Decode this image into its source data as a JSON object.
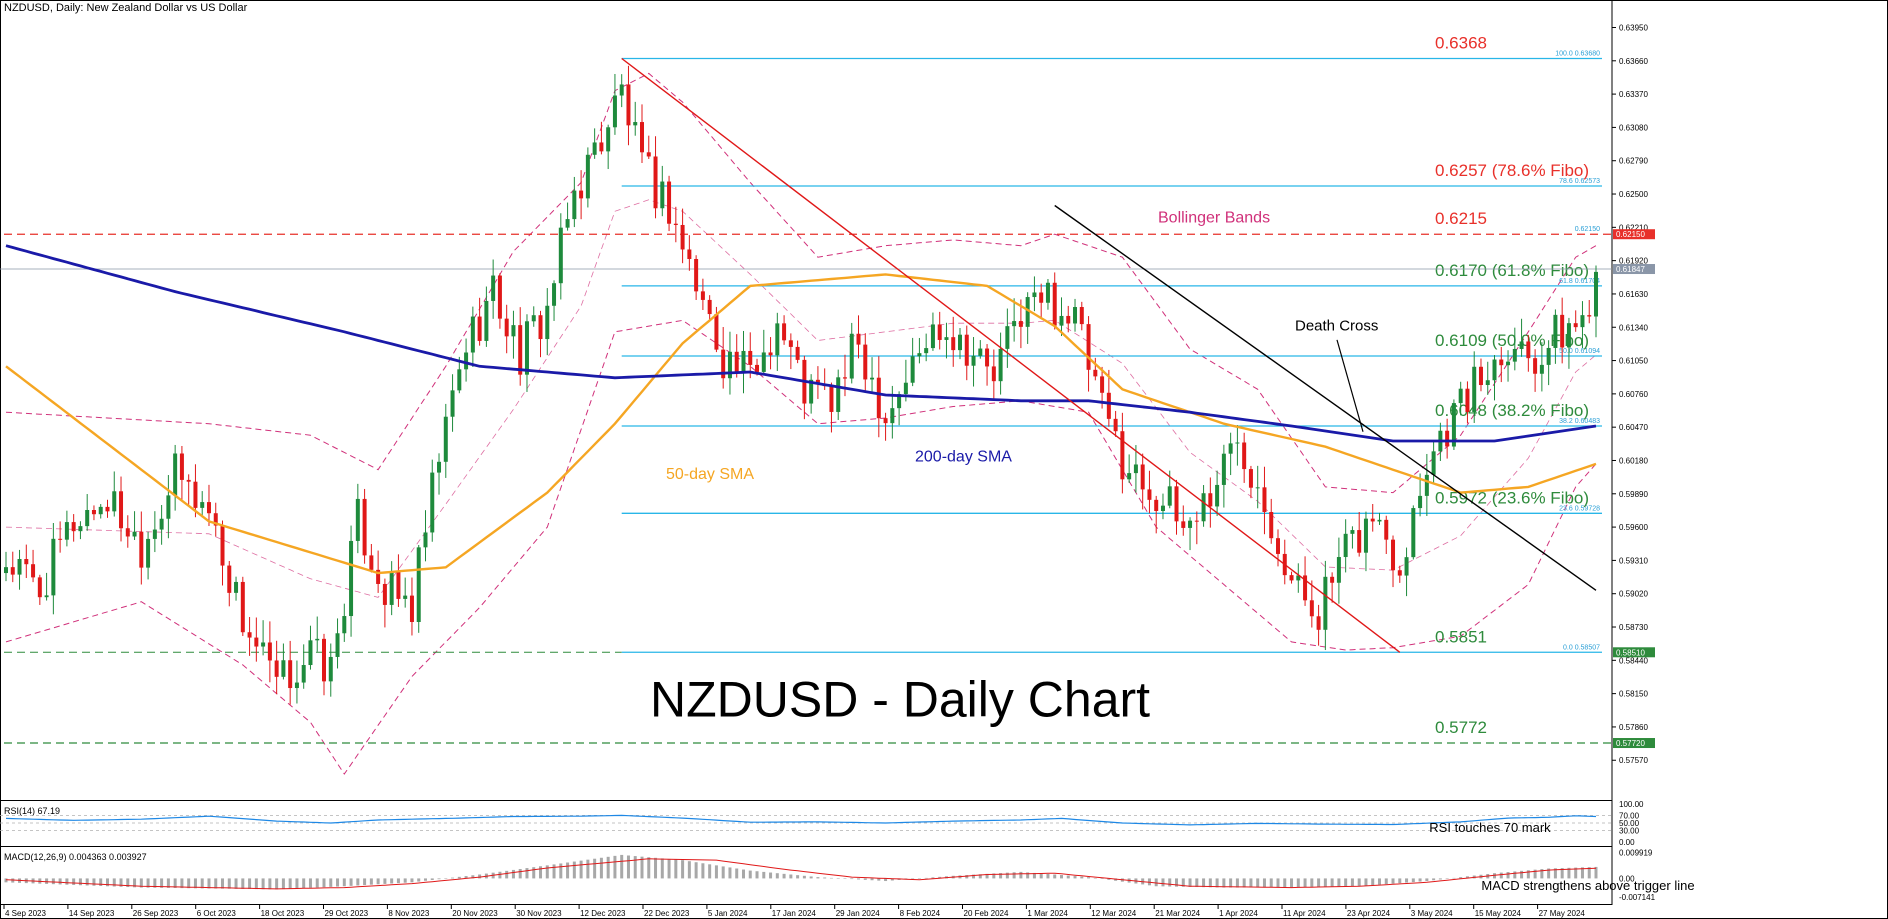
{
  "header": {
    "symbol_line": "NZDUSD, Daily:  New Zealand Dollar vs US Dollar",
    "big_title": "NZDUSD - Daily Chart"
  },
  "colors": {
    "bull": "#1e8a3c",
    "bear": "#e01818",
    "sma50": "#f5a623",
    "sma200": "#1a1aa8",
    "bollinger": "#d0307a",
    "fibo": "#29b6e8",
    "red_level": "#e8302a",
    "green_text": "#2e8b3c",
    "downline": "#e01818",
    "trendline": "#000000",
    "rsi_line": "#1e88e5",
    "macd_hist": "#a8a8a8",
    "macd_signal": "#e01818"
  },
  "chart_data": {
    "type": "candlestick",
    "y_range": [
      0.5725,
      0.6405
    ],
    "price_axis_ticks": [
      "0.63950",
      "0.63660",
      "0.63370",
      "0.63080",
      "0.62790",
      "0.62500",
      "0.62210",
      "0.61920",
      "0.61630",
      "0.61340",
      "0.61050",
      "0.60760",
      "0.60470",
      "0.60180",
      "0.59890",
      "0.59600",
      "0.59310",
      "0.59020",
      "0.58730",
      "0.58440",
      "0.58150",
      "0.57860",
      "0.57570"
    ],
    "date_axis_labels": [
      "4 Sep 2023",
      "14 Sep 2023",
      "26 Sep 2023",
      "6 Oct 2023",
      "18 Oct 2023",
      "29 Oct 2023",
      "8 Nov 2023",
      "20 Nov 2023",
      "30 Nov 2023",
      "12 Dec 2023",
      "22 Dec 2023",
      "5 Jan 2024",
      "17 Jan 2024",
      "29 Jan 2024",
      "8 Feb 2024",
      "20 Feb 2024",
      "1 Mar 2024",
      "12 Mar 2024",
      "21 Mar 2024",
      "1 Apr 2024",
      "11 Apr 2024",
      "23 Apr 2024",
      "3 May 2024",
      "15 May 2024",
      "27 May 2024"
    ],
    "anchor_closes": [
      [
        0,
        0.593
      ],
      [
        5,
        0.5905
      ],
      [
        10,
        0.5965
      ],
      [
        15,
        0.5985
      ],
      [
        20,
        0.5945
      ],
      [
        25,
        0.6005
      ],
      [
        30,
        0.5975
      ],
      [
        35,
        0.588
      ],
      [
        40,
        0.582
      ],
      [
        45,
        0.585
      ],
      [
        48,
        0.5835
      ],
      [
        52,
        0.5965
      ],
      [
        56,
        0.5905
      ],
      [
        60,
        0.589
      ],
      [
        64,
        0.602
      ],
      [
        68,
        0.612
      ],
      [
        72,
        0.6165
      ],
      [
        76,
        0.611
      ],
      [
        80,
        0.615
      ],
      [
        84,
        0.625
      ],
      [
        88,
        0.63
      ],
      [
        91,
        0.634
      ],
      [
        94,
        0.627
      ],
      [
        98,
        0.624
      ],
      [
        102,
        0.617
      ],
      [
        106,
        0.611
      ],
      [
        110,
        0.609
      ],
      [
        114,
        0.614
      ],
      [
        118,
        0.608
      ],
      [
        122,
        0.607
      ],
      [
        126,
        0.612
      ],
      [
        130,
        0.606
      ],
      [
        134,
        0.61
      ],
      [
        138,
        0.614
      ],
      [
        142,
        0.612
      ],
      [
        146,
        0.609
      ],
      [
        150,
        0.615
      ],
      [
        154,
        0.616
      ],
      [
        158,
        0.614
      ],
      [
        162,
        0.606
      ],
      [
        166,
        0.601
      ],
      [
        170,
        0.599
      ],
      [
        174,
        0.596
      ],
      [
        178,
        0.599
      ],
      [
        182,
        0.604
      ],
      [
        186,
        0.599
      ],
      [
        190,
        0.591
      ],
      [
        194,
        0.589
      ],
      [
        198,
        0.5935
      ],
      [
        202,
        0.597
      ],
      [
        206,
        0.593
      ],
      [
        210,
        0.602
      ],
      [
        214,
        0.606
      ],
      [
        218,
        0.609
      ],
      [
        222,
        0.6125
      ],
      [
        226,
        0.611
      ],
      [
        230,
        0.613
      ],
      [
        233,
        0.614
      ],
      [
        235,
        0.6185
      ]
    ],
    "moving_averages": [
      {
        "name": "50-day SMA",
        "points": [
          [
            0,
            0.61
          ],
          [
            30,
            0.5965
          ],
          [
            55,
            0.592
          ],
          [
            65,
            0.5925
          ],
          [
            80,
            0.599
          ],
          [
            90,
            0.605
          ],
          [
            100,
            0.612
          ],
          [
            110,
            0.617
          ],
          [
            130,
            0.618
          ],
          [
            145,
            0.617
          ],
          [
            155,
            0.6135
          ],
          [
            165,
            0.608
          ],
          [
            180,
            0.605
          ],
          [
            195,
            0.603
          ],
          [
            205,
            0.601
          ],
          [
            215,
            0.599
          ],
          [
            225,
            0.5995
          ],
          [
            235,
            0.6015
          ]
        ]
      },
      {
        "name": "200-day SMA",
        "points": [
          [
            0,
            0.6205
          ],
          [
            25,
            0.6165
          ],
          [
            50,
            0.613
          ],
          [
            70,
            0.61
          ],
          [
            90,
            0.609
          ],
          [
            110,
            0.6095
          ],
          [
            130,
            0.6075
          ],
          [
            150,
            0.607
          ],
          [
            160,
            0.607
          ],
          [
            175,
            0.606
          ],
          [
            190,
            0.6048
          ],
          [
            205,
            0.6035
          ],
          [
            220,
            0.6035
          ],
          [
            235,
            0.6048
          ]
        ]
      }
    ],
    "bollinger_bands": {
      "upper": [
        [
          0,
          0.606
        ],
        [
          30,
          0.605
        ],
        [
          45,
          0.604
        ],
        [
          55,
          0.601
        ],
        [
          65,
          0.61
        ],
        [
          75,
          0.62
        ],
        [
          85,
          0.626
        ],
        [
          90,
          0.634
        ],
        [
          95,
          0.6355
        ],
        [
          100,
          0.633
        ],
        [
          110,
          0.626
        ],
        [
          120,
          0.6195
        ],
        [
          130,
          0.6205
        ],
        [
          140,
          0.621
        ],
        [
          150,
          0.6205
        ],
        [
          155,
          0.6215
        ],
        [
          165,
          0.6195
        ],
        [
          175,
          0.6115
        ],
        [
          185,
          0.608
        ],
        [
          195,
          0.5995
        ],
        [
          205,
          0.599
        ],
        [
          215,
          0.604
        ],
        [
          225,
          0.613
        ],
        [
          232,
          0.6195
        ],
        [
          235,
          0.6205
        ]
      ],
      "lower": [
        [
          0,
          0.586
        ],
        [
          20,
          0.5895
        ],
        [
          35,
          0.584
        ],
        [
          45,
          0.579
        ],
        [
          50,
          0.5745
        ],
        [
          60,
          0.583
        ],
        [
          70,
          0.589
        ],
        [
          80,
          0.596
        ],
        [
          90,
          0.613
        ],
        [
          100,
          0.614
        ],
        [
          110,
          0.61
        ],
        [
          120,
          0.605
        ],
        [
          130,
          0.6055
        ],
        [
          140,
          0.6065
        ],
        [
          150,
          0.607
        ],
        [
          160,
          0.606
        ],
        [
          170,
          0.596
        ],
        [
          180,
          0.591
        ],
        [
          190,
          0.586
        ],
        [
          198,
          0.5853
        ],
        [
          205,
          0.5855
        ],
        [
          215,
          0.5865
        ],
        [
          225,
          0.591
        ],
        [
          232,
          0.5995
        ],
        [
          235,
          0.6015
        ]
      ]
    },
    "horizontal_levels": [
      {
        "value": 0.6368,
        "text": "0.6368",
        "tag": "100.0 0.63680",
        "style": "fibo-solid",
        "text_color": "red"
      },
      {
        "value": 0.6257,
        "text": "0.6257 (78.6% Fibo)",
        "tag": "78.6 0.62573",
        "style": "fibo-solid",
        "text_color": "red"
      },
      {
        "value": 0.6215,
        "text": "0.6215",
        "tag": "0.62150",
        "style": "red-dashed",
        "text_color": "red"
      },
      {
        "value": 0.617,
        "text": "0.6170 (61.8% Fibo)",
        "tag": "61.8 0.61704",
        "style": "fibo-solid",
        "text_color": "green"
      },
      {
        "value": 0.6109,
        "text": "0.6109 (50.0% Fibo)",
        "tag": "50.0 0.61094",
        "style": "fibo-solid",
        "text_color": "green"
      },
      {
        "value": 0.6048,
        "text": "0.6048 (38.2% Fibo)",
        "tag": "38.2 0.60483",
        "style": "fibo-solid",
        "text_color": "green"
      },
      {
        "value": 0.5972,
        "text": "0.5972 (23.6% Fibo)",
        "tag": "23.6 0.59728",
        "style": "fibo-solid",
        "text_color": "green"
      },
      {
        "value": 0.5851,
        "text": "0.5851",
        "tag": "0.0 0.58507",
        "style": "fibo-solid-dashedleft",
        "text_color": "green"
      },
      {
        "value": 0.5772,
        "text": "0.5772",
        "tag": "",
        "style": "green-dashed",
        "text_color": "green"
      }
    ],
    "price_tags": [
      {
        "value": 0.6215,
        "text": "0.62150",
        "bg": "#e8302a"
      },
      {
        "value": 0.61847,
        "text": "0.61847",
        "bg": "#8a96a8"
      },
      {
        "value": 0.5851,
        "text": "0.58510",
        "bg": "#2e8b3c"
      },
      {
        "value": 0.5772,
        "text": "0.57720",
        "bg": "#2e8b3c"
      }
    ],
    "annotations": {
      "bollinger": "Bollinger Bands",
      "death_cross": "Death Cross",
      "sma50": "50-day SMA",
      "sma200": "200-day SMA",
      "rsi_note": "RSI touches 70 mark",
      "macd_note": "MACD strengthens above trigger line"
    },
    "downtrend_line": [
      [
        91,
        0.6368
      ],
      [
        206,
        0.5851
      ]
    ],
    "trendline": [
      [
        155,
        0.624
      ],
      [
        235,
        0.5905
      ]
    ],
    "rsi": {
      "label": "RSI(14) 67.19",
      "ticks": [
        "100.00",
        "70.00",
        "50.00",
        "30.00",
        "0.00"
      ],
      "levels": [
        70,
        30
      ],
      "points": [
        [
          0,
          62
        ],
        [
          10,
          57
        ],
        [
          20,
          60
        ],
        [
          30,
          68
        ],
        [
          40,
          55
        ],
        [
          48,
          50
        ],
        [
          55,
          58
        ],
        [
          65,
          62
        ],
        [
          75,
          67
        ],
        [
          85,
          68
        ],
        [
          91,
          70
        ],
        [
          100,
          63
        ],
        [
          110,
          52
        ],
        [
          120,
          53
        ],
        [
          130,
          50
        ],
        [
          140,
          55
        ],
        [
          150,
          58
        ],
        [
          156,
          62
        ],
        [
          165,
          50
        ],
        [
          175,
          45
        ],
        [
          185,
          49
        ],
        [
          195,
          47
        ],
        [
          205,
          46
        ],
        [
          215,
          53
        ],
        [
          222,
          63
        ],
        [
          228,
          65
        ],
        [
          232,
          69
        ],
        [
          235,
          67
        ]
      ]
    },
    "macd": {
      "label": "MACD(12,26,9) 0.004363 0.003927",
      "ticks": [
        "0.009919",
        "0.00",
        "-0.007141"
      ],
      "range": [
        -0.0075,
        0.0105
      ],
      "hist": [
        [
          0,
          -0.0015
        ],
        [
          20,
          -0.0035
        ],
        [
          40,
          -0.0042
        ],
        [
          50,
          -0.003
        ],
        [
          60,
          -0.0015
        ],
        [
          70,
          0.0015
        ],
        [
          80,
          0.005
        ],
        [
          91,
          0.009
        ],
        [
          100,
          0.007
        ],
        [
          110,
          0.003
        ],
        [
          120,
          0.0005
        ],
        [
          130,
          -0.001
        ],
        [
          140,
          0.001
        ],
        [
          150,
          0.0025
        ],
        [
          160,
          0.0005
        ],
        [
          170,
          -0.003
        ],
        [
          180,
          -0.0035
        ],
        [
          190,
          -0.0035
        ],
        [
          200,
          -0.003
        ],
        [
          210,
          -0.001
        ],
        [
          220,
          0.002
        ],
        [
          228,
          0.0038
        ],
        [
          235,
          0.0044
        ]
      ],
      "signal": [
        [
          0,
          -0.0005
        ],
        [
          20,
          -0.003
        ],
        [
          40,
          -0.004
        ],
        [
          50,
          -0.0035
        ],
        [
          60,
          -0.002
        ],
        [
          70,
          0.0005
        ],
        [
          80,
          0.004
        ],
        [
          95,
          0.0075
        ],
        [
          105,
          0.007
        ],
        [
          115,
          0.0035
        ],
        [
          125,
          0.0005
        ],
        [
          135,
          -0.0005
        ],
        [
          145,
          0.0015
        ],
        [
          155,
          0.002
        ],
        [
          165,
          -0.0005
        ],
        [
          175,
          -0.003
        ],
        [
          190,
          -0.0035
        ],
        [
          200,
          -0.003
        ],
        [
          210,
          -0.0015
        ],
        [
          220,
          0.0012
        ],
        [
          228,
          0.0032
        ],
        [
          235,
          0.0039
        ]
      ]
    }
  }
}
